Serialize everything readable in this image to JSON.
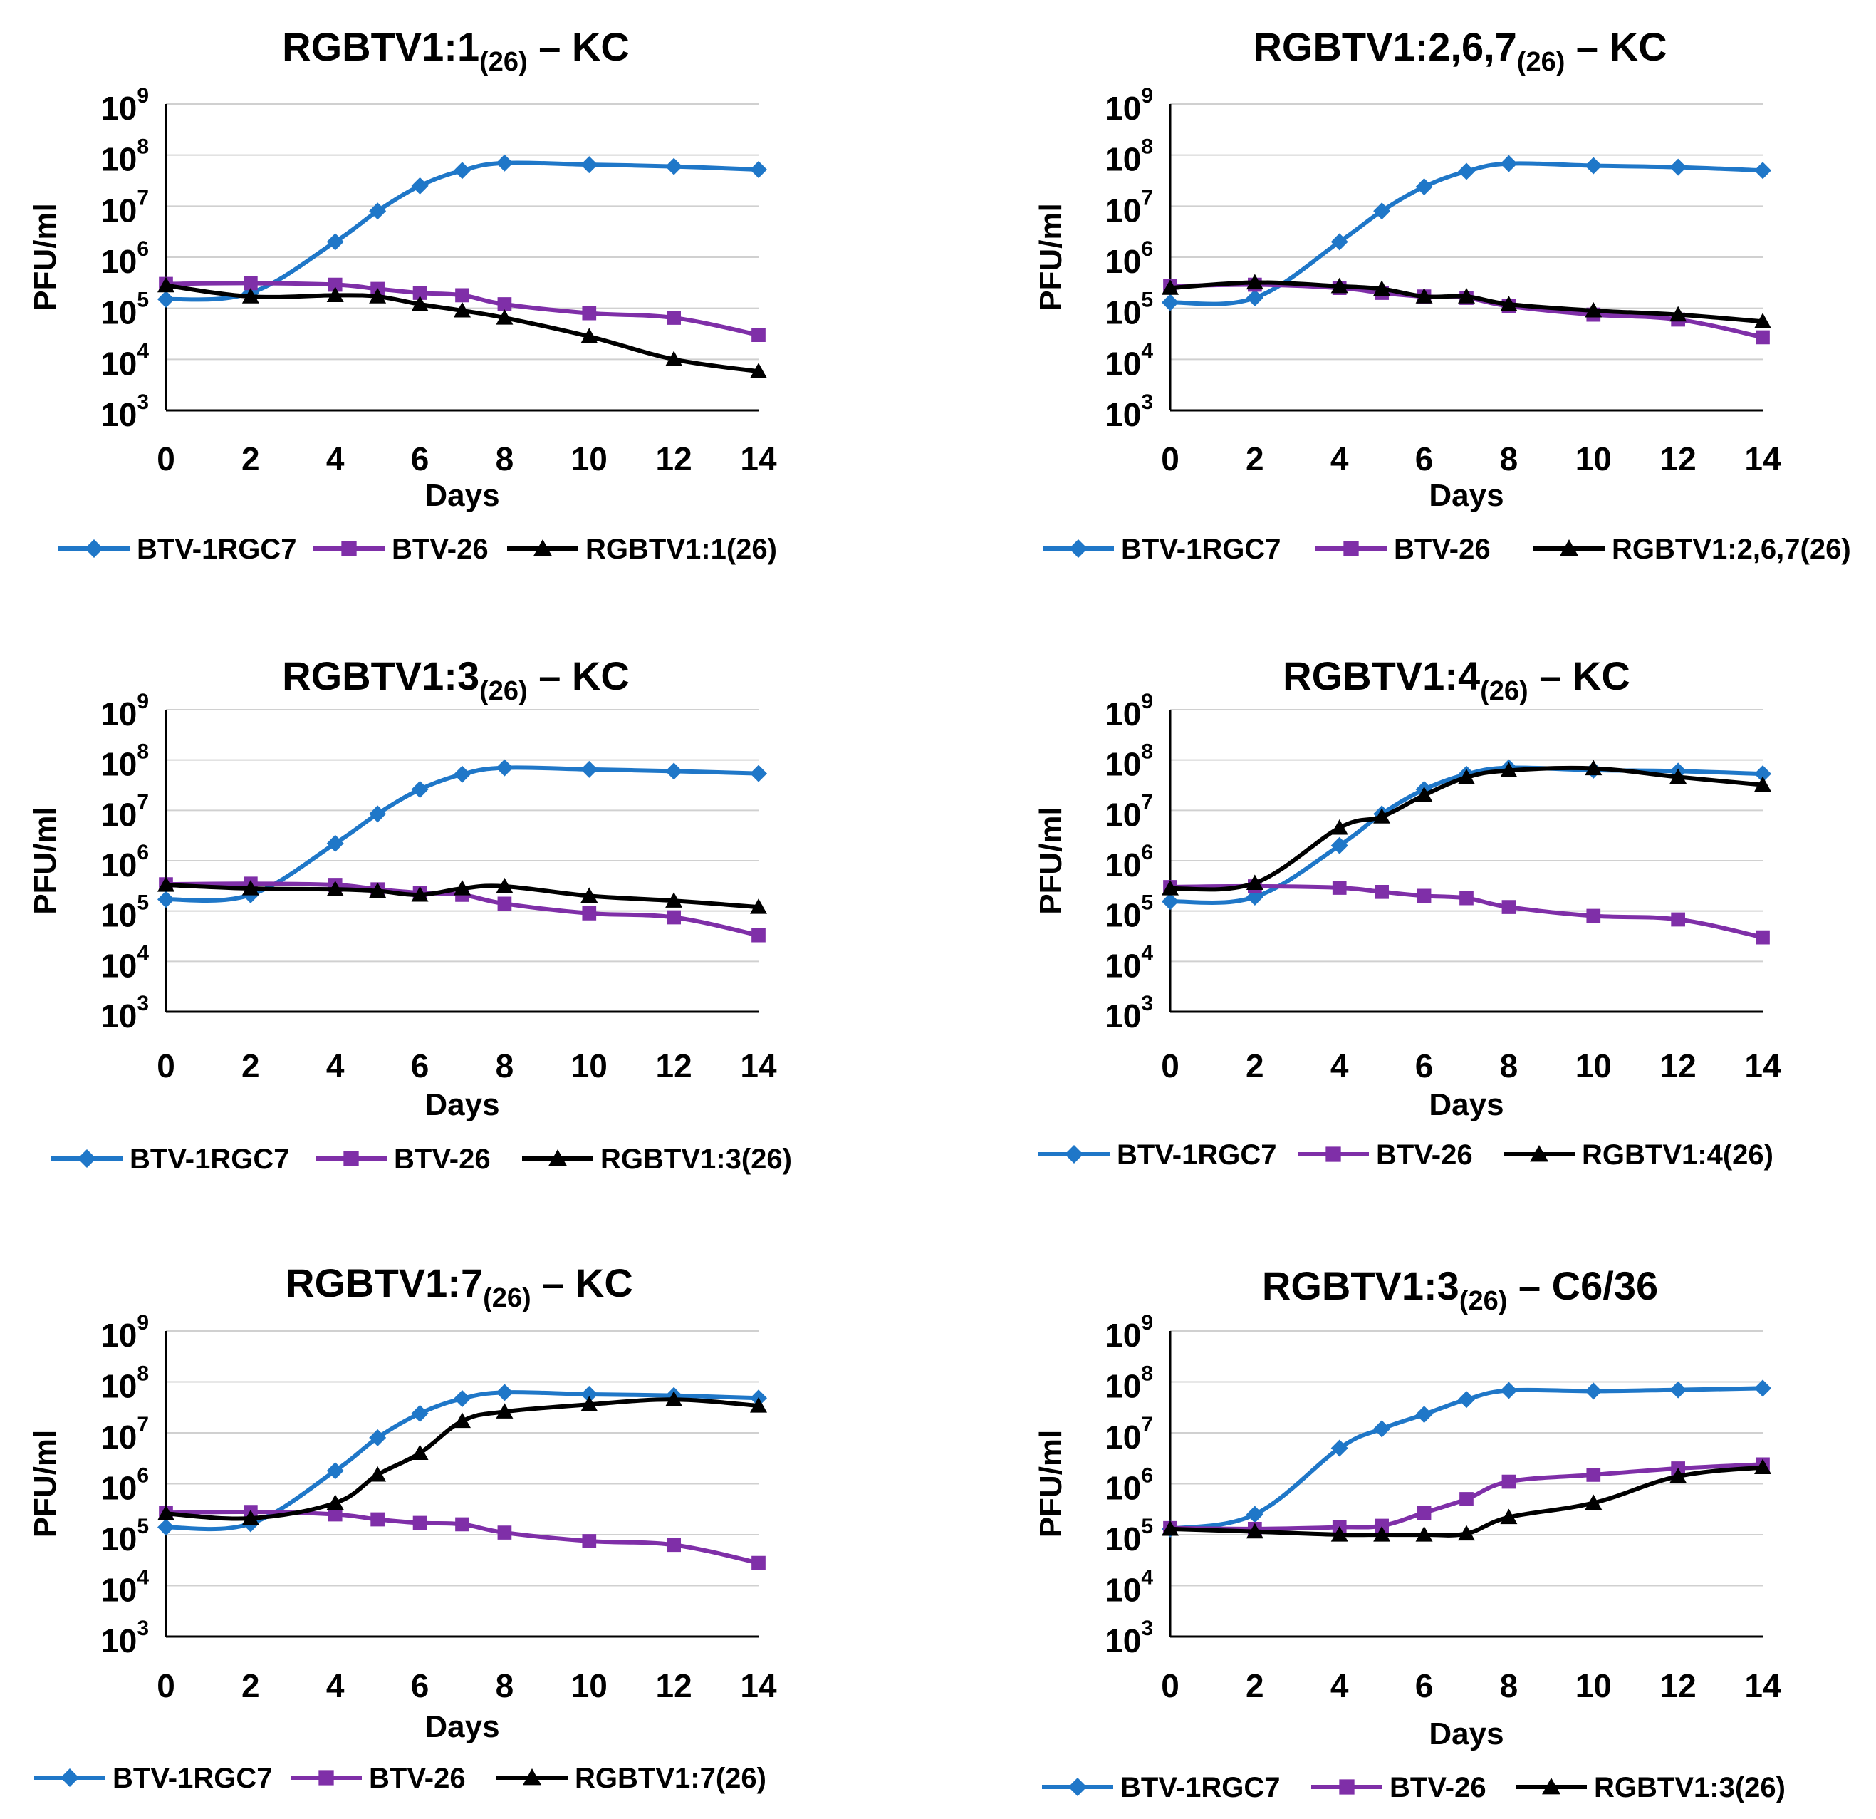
{
  "figure": {
    "series_colors": [
      "#1f77c8",
      "#7f2fa8",
      "#000000"
    ],
    "marker_shapes": [
      "diamond",
      "square",
      "triangle"
    ]
  },
  "chart_data": [
    {
      "type": "line",
      "title": "RGBTV1:1(26) – KC",
      "title_main": "RGBTV1:1",
      "title_sub": "(26)",
      "title_suffix": " – KC",
      "xlabel": "Days",
      "ylabel": "PFU/ml",
      "yscale": "log10",
      "ylim": [
        1000,
        1000000000
      ],
      "xlim": [
        0,
        14
      ],
      "y_ticks": [
        {
          "base": "10",
          "exp": "9"
        },
        {
          "base": "10",
          "exp": "8"
        },
        {
          "base": "10",
          "exp": "7"
        },
        {
          "base": "10",
          "exp": "6"
        },
        {
          "base": "10",
          "exp": "5"
        },
        {
          "base": "10",
          "exp": "4"
        },
        {
          "base": "10",
          "exp": "3"
        }
      ],
      "x_ticks": [
        "0",
        "2",
        "4",
        "6",
        "8",
        "10",
        "12",
        "14"
      ],
      "x": [
        0,
        2,
        4,
        5,
        6,
        7,
        8,
        10,
        12,
        14
      ],
      "series": [
        {
          "name": "BTV-1RGC7",
          "values": [
            150000,
            200000,
            2000000,
            8000000,
            25000000,
            50000000,
            70000000,
            65000000,
            60000000,
            52000000
          ]
        },
        {
          "name": "BTV-26",
          "values": [
            300000,
            310000,
            290000,
            240000,
            200000,
            180000,
            120000,
            80000,
            65000,
            30000
          ]
        },
        {
          "name": "RGBTV1:1(26)",
          "values": [
            280000,
            170000,
            180000,
            170000,
            120000,
            90000,
            65000,
            28000,
            10000,
            5800
          ]
        }
      ]
    },
    {
      "type": "line",
      "title": "RGBTV1:2,6,7(26) – KC",
      "title_main": "RGBTV1:2,6,7",
      "title_sub": "(26)",
      "title_suffix": " – KC",
      "xlabel": "Days",
      "ylabel": "PFU/ml",
      "yscale": "log10",
      "ylim": [
        1000,
        1000000000
      ],
      "xlim": [
        0,
        14
      ],
      "y_ticks": [
        {
          "base": "10",
          "exp": "9"
        },
        {
          "base": "10",
          "exp": "8"
        },
        {
          "base": "10",
          "exp": "7"
        },
        {
          "base": "10",
          "exp": "6"
        },
        {
          "base": "10",
          "exp": "5"
        },
        {
          "base": "10",
          "exp": "4"
        },
        {
          "base": "10",
          "exp": "3"
        }
      ],
      "x_ticks": [
        "0",
        "2",
        "4",
        "6",
        "8",
        "10",
        "12",
        "14"
      ],
      "x": [
        0,
        2,
        4,
        5,
        6,
        7,
        8,
        10,
        12,
        14
      ],
      "series": [
        {
          "name": "BTV-1RGC7",
          "values": [
            130000,
            160000,
            2000000,
            8000000,
            24000000,
            48000000,
            68000000,
            62000000,
            58000000,
            50000000
          ]
        },
        {
          "name": "BTV-26",
          "values": [
            270000,
            290000,
            250000,
            200000,
            170000,
            160000,
            110000,
            75000,
            60000,
            27000
          ]
        },
        {
          "name": "RGBTV1:2,6,7(26)",
          "values": [
            250000,
            320000,
            270000,
            240000,
            170000,
            170000,
            120000,
            90000,
            75000,
            55000
          ]
        }
      ]
    },
    {
      "type": "line",
      "title": "RGBTV1:3(26) – KC",
      "title_main": "RGBTV1:3",
      "title_sub": "(26)",
      "title_suffix": " – KC",
      "xlabel": "Days",
      "ylabel": "PFU/ml",
      "yscale": "log10",
      "ylim": [
        1000,
        1000000000
      ],
      "xlim": [
        0,
        14
      ],
      "y_ticks": [
        {
          "base": "10",
          "exp": "9"
        },
        {
          "base": "10",
          "exp": "8"
        },
        {
          "base": "10",
          "exp": "7"
        },
        {
          "base": "10",
          "exp": "6"
        },
        {
          "base": "10",
          "exp": "5"
        },
        {
          "base": "10",
          "exp": "4"
        },
        {
          "base": "10",
          "exp": "3"
        }
      ],
      "x_ticks": [
        "0",
        "2",
        "4",
        "6",
        "8",
        "10",
        "12",
        "14"
      ],
      "x": [
        0,
        2,
        4,
        5,
        6,
        7,
        8,
        10,
        12,
        14
      ],
      "series": [
        {
          "name": "BTV-1RGC7",
          "values": [
            170000,
            210000,
            2200000,
            8500000,
            26000000,
            52000000,
            70000000,
            65000000,
            60000000,
            54000000
          ]
        },
        {
          "name": "BTV-26",
          "values": [
            340000,
            350000,
            330000,
            270000,
            230000,
            210000,
            140000,
            90000,
            75000,
            33000
          ]
        },
        {
          "name": "RGBTV1:3(26)",
          "values": [
            330000,
            280000,
            270000,
            250000,
            210000,
            280000,
            310000,
            200000,
            160000,
            120000
          ]
        }
      ]
    },
    {
      "type": "line",
      "title": "RGBTV1:4(26) – KC",
      "title_main": "RGBTV1:4",
      "title_sub": "(26)",
      "title_suffix": " – KC",
      "xlabel": "Days",
      "ylabel": "PFU/ml",
      "yscale": "log10",
      "ylim": [
        1000,
        1000000000
      ],
      "xlim": [
        0,
        14
      ],
      "y_ticks": [
        {
          "base": "10",
          "exp": "9"
        },
        {
          "base": "10",
          "exp": "8"
        },
        {
          "base": "10",
          "exp": "7"
        },
        {
          "base": "10",
          "exp": "6"
        },
        {
          "base": "10",
          "exp": "5"
        },
        {
          "base": "10",
          "exp": "4"
        },
        {
          "base": "10",
          "exp": "3"
        }
      ],
      "x_ticks": [
        "0",
        "2",
        "4",
        "6",
        "8",
        "10",
        "12",
        "14"
      ],
      "x": [
        0,
        2,
        4,
        5,
        6,
        7,
        8,
        10,
        12,
        14
      ],
      "series": [
        {
          "name": "BTV-1RGC7",
          "values": [
            155000,
            190000,
            2000000,
            8500000,
            26000000,
            52000000,
            70000000,
            63000000,
            60000000,
            53000000
          ]
        },
        {
          "name": "BTV-26",
          "values": [
            300000,
            310000,
            290000,
            240000,
            200000,
            180000,
            120000,
            80000,
            68000,
            30000
          ]
        },
        {
          "name": "RGBTV1:4(26)",
          "values": [
            280000,
            360000,
            4500000,
            7500000,
            20000000,
            45000000,
            62000000,
            68000000,
            46000000,
            32000000
          ]
        }
      ]
    },
    {
      "type": "line",
      "title": "RGBTV1:7(26) – KC",
      "title_main": "RGBTV1:7",
      "title_sub": "(26)",
      "title_suffix": " – KC",
      "xlabel": "Days",
      "ylabel": "PFU/ml",
      "yscale": "log10",
      "ylim": [
        1000,
        1000000000
      ],
      "xlim": [
        0,
        14
      ],
      "y_ticks": [
        {
          "base": "10",
          "exp": "9"
        },
        {
          "base": "10",
          "exp": "8"
        },
        {
          "base": "10",
          "exp": "7"
        },
        {
          "base": "10",
          "exp": "6"
        },
        {
          "base": "10",
          "exp": "5"
        },
        {
          "base": "10",
          "exp": "4"
        },
        {
          "base": "10",
          "exp": "3"
        }
      ],
      "x_ticks": [
        "0",
        "2",
        "4",
        "6",
        "8",
        "10",
        "12",
        "14"
      ],
      "x": [
        0,
        2,
        4,
        5,
        6,
        7,
        8,
        10,
        12,
        14
      ],
      "series": [
        {
          "name": "BTV-1RGC7",
          "values": [
            140000,
            165000,
            1800000,
            8000000,
            24000000,
            47000000,
            62000000,
            57000000,
            54000000,
            48000000
          ]
        },
        {
          "name": "BTV-26",
          "values": [
            270000,
            280000,
            250000,
            200000,
            170000,
            160000,
            110000,
            75000,
            63000,
            28000
          ]
        },
        {
          "name": "RGBTV1:7(26)",
          "values": [
            260000,
            210000,
            420000,
            1500000,
            4000000,
            17000000,
            26000000,
            36000000,
            45000000,
            34000000
          ]
        }
      ]
    },
    {
      "type": "line",
      "title": "RGBTV1:3(26) – C6/36",
      "title_main": "RGBTV1:3",
      "title_sub": "(26)",
      "title_suffix": " – C6/36",
      "xlabel": "Days",
      "ylabel": "PFU/ml",
      "yscale": "log10",
      "ylim": [
        1000,
        1000000000
      ],
      "xlim": [
        0,
        14
      ],
      "y_ticks": [
        {
          "base": "10",
          "exp": "9"
        },
        {
          "base": "10",
          "exp": "8"
        },
        {
          "base": "10",
          "exp": "7"
        },
        {
          "base": "10",
          "exp": "6"
        },
        {
          "base": "10",
          "exp": "5"
        },
        {
          "base": "10",
          "exp": "4"
        },
        {
          "base": "10",
          "exp": "3"
        }
      ],
      "x_ticks": [
        "0",
        "2",
        "4",
        "6",
        "8",
        "10",
        "12",
        "14"
      ],
      "x": [
        0,
        2,
        4,
        5,
        6,
        7,
        8,
        10,
        12,
        14
      ],
      "series": [
        {
          "name": "BTV-1RGC7",
          "values": [
            130000,
            250000,
            5000000,
            12000000,
            23000000,
            45000000,
            68000000,
            66000000,
            70000000,
            75000000
          ]
        },
        {
          "name": "BTV-26",
          "values": [
            135000,
            130000,
            140000,
            150000,
            270000,
            500000,
            1100000,
            1500000,
            2000000,
            2400000
          ]
        },
        {
          "name": "RGBTV1:3(26)",
          "values": [
            130000,
            115000,
            100000,
            100000,
            100000,
            105000,
            220000,
            420000,
            1400000,
            2100000
          ]
        }
      ]
    }
  ]
}
